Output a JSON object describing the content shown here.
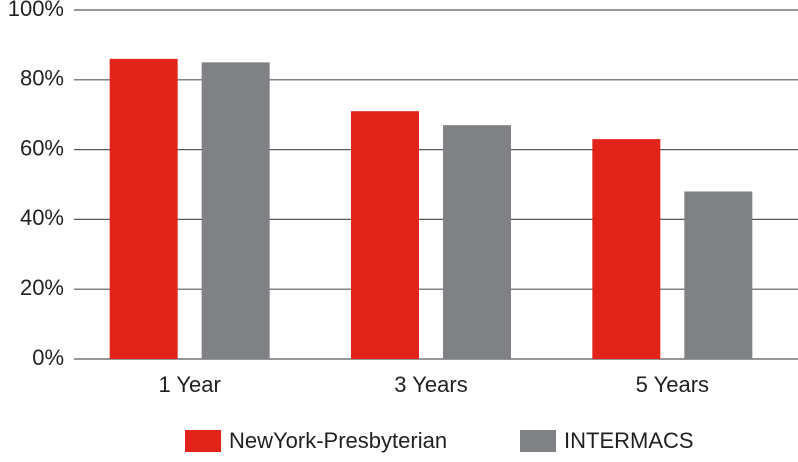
{
  "chart_data": {
    "type": "bar",
    "categories": [
      "1 Year",
      "3 Years",
      "5 Years"
    ],
    "series": [
      {
        "name": "NewYork-Presbyterian",
        "color": "#e2231a",
        "values": [
          86,
          71,
          63
        ]
      },
      {
        "name": "INTERMACS",
        "color": "#808184",
        "values": [
          85,
          67,
          48
        ]
      }
    ],
    "ylim": [
      0,
      100
    ],
    "yticks": [
      {
        "value": 0,
        "label": "0%"
      },
      {
        "value": 20,
        "label": "20%"
      },
      {
        "value": 40,
        "label": "40%"
      },
      {
        "value": 60,
        "label": "60%"
      },
      {
        "value": 80,
        "label": "80%"
      },
      {
        "value": 100,
        "label": "100%"
      }
    ],
    "grid": true,
    "legend": "bottom"
  }
}
